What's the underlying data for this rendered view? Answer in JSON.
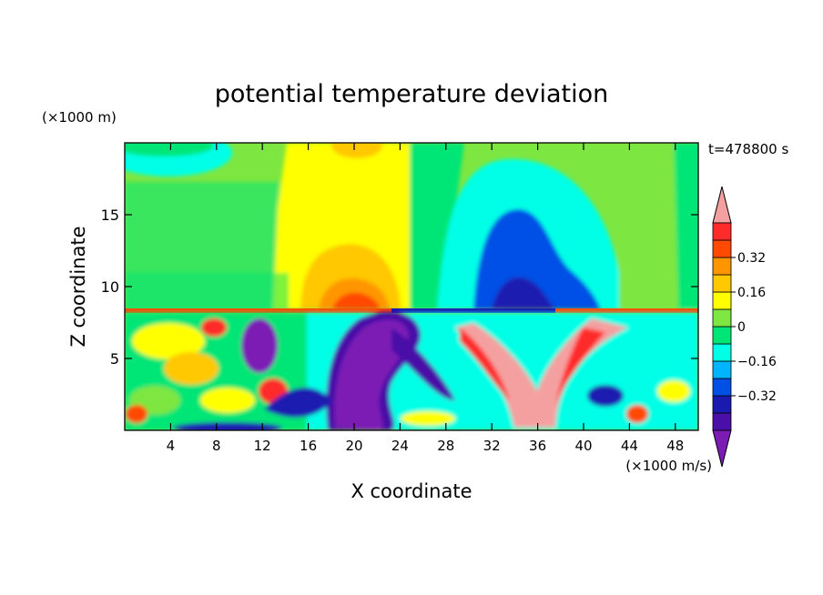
{
  "chart_data": {
    "type": "heatmap",
    "title": "potential temperature deviation",
    "xlabel": "X coordinate",
    "ylabel": "Z coordinate",
    "x_unit": "(×1000 m/s)",
    "y_unit": "(×1000 m)",
    "time_label": "t=478800 s",
    "xlim": [
      0,
      50
    ],
    "ylim": [
      0,
      20
    ],
    "x_ticks": [
      4,
      8,
      12,
      16,
      20,
      24,
      28,
      32,
      36,
      40,
      44,
      48
    ],
    "y_ticks": [
      5,
      10,
      15
    ],
    "colorbar": {
      "levels": [
        -0.48,
        -0.4,
        -0.32,
        -0.24,
        -0.16,
        -0.08,
        0,
        0.08,
        0.16,
        0.24,
        0.32,
        0.4
      ],
      "labels": [
        "0.32",
        "0.16",
        "0",
        "−0.16",
        "−0.32"
      ],
      "label_values": [
        0.32,
        0.16,
        0,
        -0.16,
        -0.32
      ],
      "colors": [
        "#7d1bb5",
        "#4a0fa8",
        "#1a1ab0",
        "#0050e6",
        "#00b4ff",
        "#00ffe6",
        "#00e676",
        "#7ee640",
        "#ffff00",
        "#ffc800",
        "#ff9600",
        "#ff4a00",
        "#ff2a2a",
        "#f5a0a0"
      ],
      "extend": "both"
    }
  }
}
